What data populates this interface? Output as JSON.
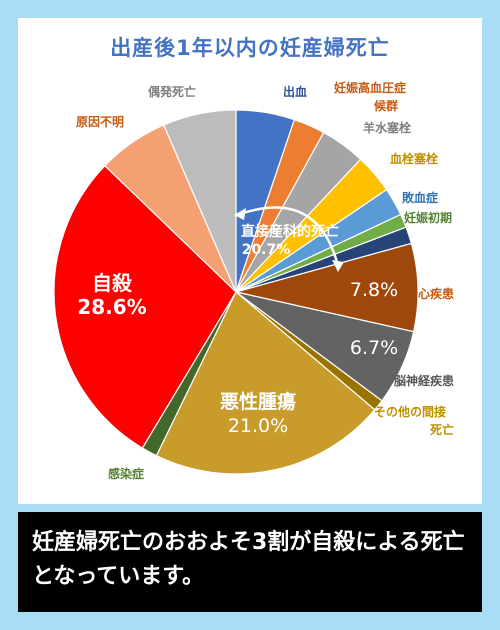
{
  "caption": "妊産婦死亡のおおよそ3割が自殺による死亡となっています。",
  "chart_data": {
    "type": "pie",
    "title": "出産後1年以内の妊産婦死亡",
    "slices": [
      {
        "label": "出血",
        "value": 5.2,
        "color": "#4472c4",
        "label_color": "#2f5597"
      },
      {
        "label": "妊娠高血圧症候群",
        "value": 2.8,
        "color": "#ed7d31",
        "label_color": "#c55a11"
      },
      {
        "label": "羊水塞栓",
        "value": 4.0,
        "color": "#a5a5a5",
        "label_color": "#7f7f7f"
      },
      {
        "label": "血栓塞栓",
        "value": 3.5,
        "color": "#ffc000",
        "label_color": "#bf9000"
      },
      {
        "label": "敗血症",
        "value": 2.5,
        "color": "#5b9bd5",
        "label_color": "#2e75b6"
      },
      {
        "label": "妊娠初期",
        "value": 1.2,
        "color": "#70ad47",
        "label_color": "#548235"
      },
      {
        "label": "",
        "value": 1.5,
        "color": "#264478",
        "label_color": "#264478"
      },
      {
        "label": "心疾患",
        "value": 7.8,
        "value_label": "7.8%",
        "color": "#9e480e",
        "label_color": "#c55a11"
      },
      {
        "label": "脳神経疾患",
        "value": 6.7,
        "value_label": "6.7%",
        "color": "#636363",
        "label_color": "#595959"
      },
      {
        "label": "その他の間接死亡",
        "value": 1.0,
        "color": "#997300",
        "label_color": "#bf9000"
      },
      {
        "label": "悪性腫瘍",
        "value": 21.0,
        "value_label": "21.0%",
        "color": "#c89b2a",
        "label_color": "#ffffff"
      },
      {
        "label": "感染症",
        "value": 1.4,
        "color": "#43682b",
        "label_color": "#548235"
      },
      {
        "label": "自殺",
        "value": 28.6,
        "value_label": "28.6%",
        "color": "#ff0000",
        "label_color": "#ffffff"
      },
      {
        "label": "原因不明",
        "value": 6.3,
        "color": "#f4a072",
        "label_color": "#c55a11"
      },
      {
        "label": "偶発死亡",
        "value": 6.5,
        "color": "#bcbcbc",
        "label_color": "#7f7f7f"
      }
    ],
    "annotation": {
      "label": "直接産科的死亡",
      "value_label": "20.7%"
    }
  }
}
